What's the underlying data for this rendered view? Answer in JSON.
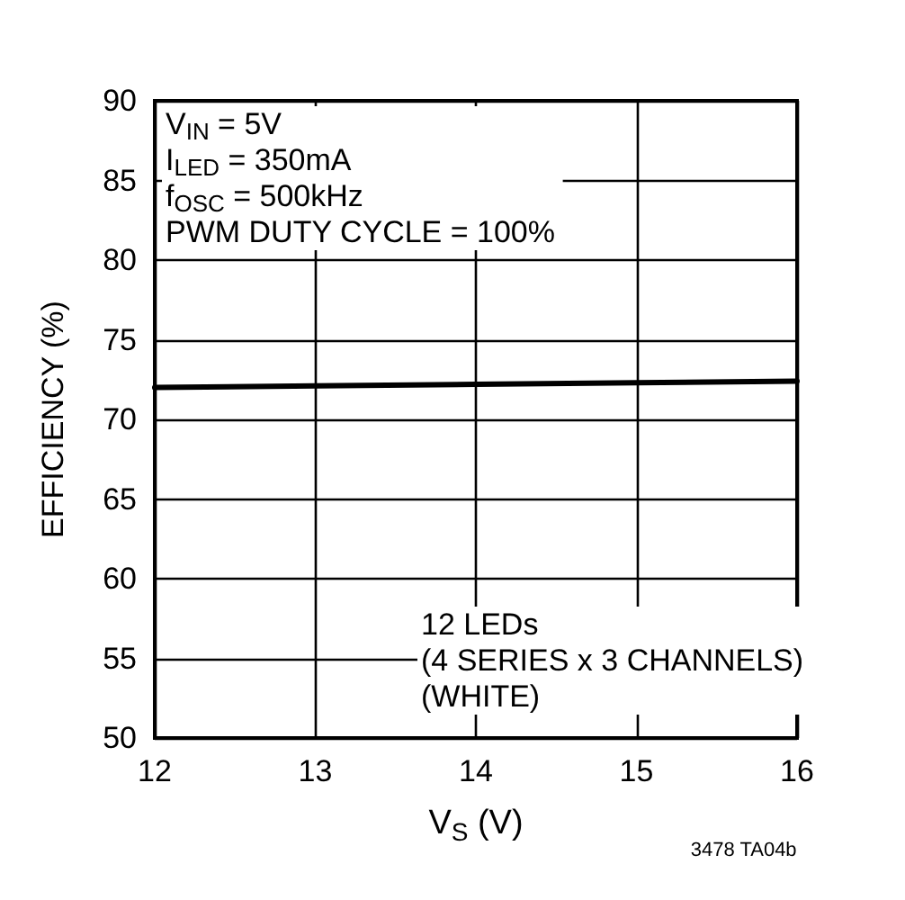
{
  "chart_data": {
    "type": "line",
    "xlabel": "V$_{S}$ (V)",
    "ylabel": "EFFICIENCY (%)",
    "x": [
      12,
      13,
      14,
      15,
      16
    ],
    "series": [
      {
        "color": "#000000",
        "values": [
          72.0,
          72.1,
          72.2,
          72.3,
          72.4
        ]
      }
    ],
    "xlim": [
      12,
      16
    ],
    "xticks": [
      12,
      13,
      14,
      15,
      16
    ],
    "ylim": [
      50,
      90
    ],
    "yticks": [
      50,
      55,
      60,
      65,
      70,
      75,
      80,
      85,
      90
    ],
    "grid": true,
    "marker": "none",
    "line_style": "solid",
    "annotations": [
      "V$_{IN}$ = 5V\nI$_{LED}$ = 350mA\nf$_{OSC}$ = 500kHz\nPWM DUTY CYCLE = 100%",
      "12 LEDs\n(4 SERIES x 3 CHANNELS)\n(WHITE)",
      "3478 TA04b"
    ]
  }
}
